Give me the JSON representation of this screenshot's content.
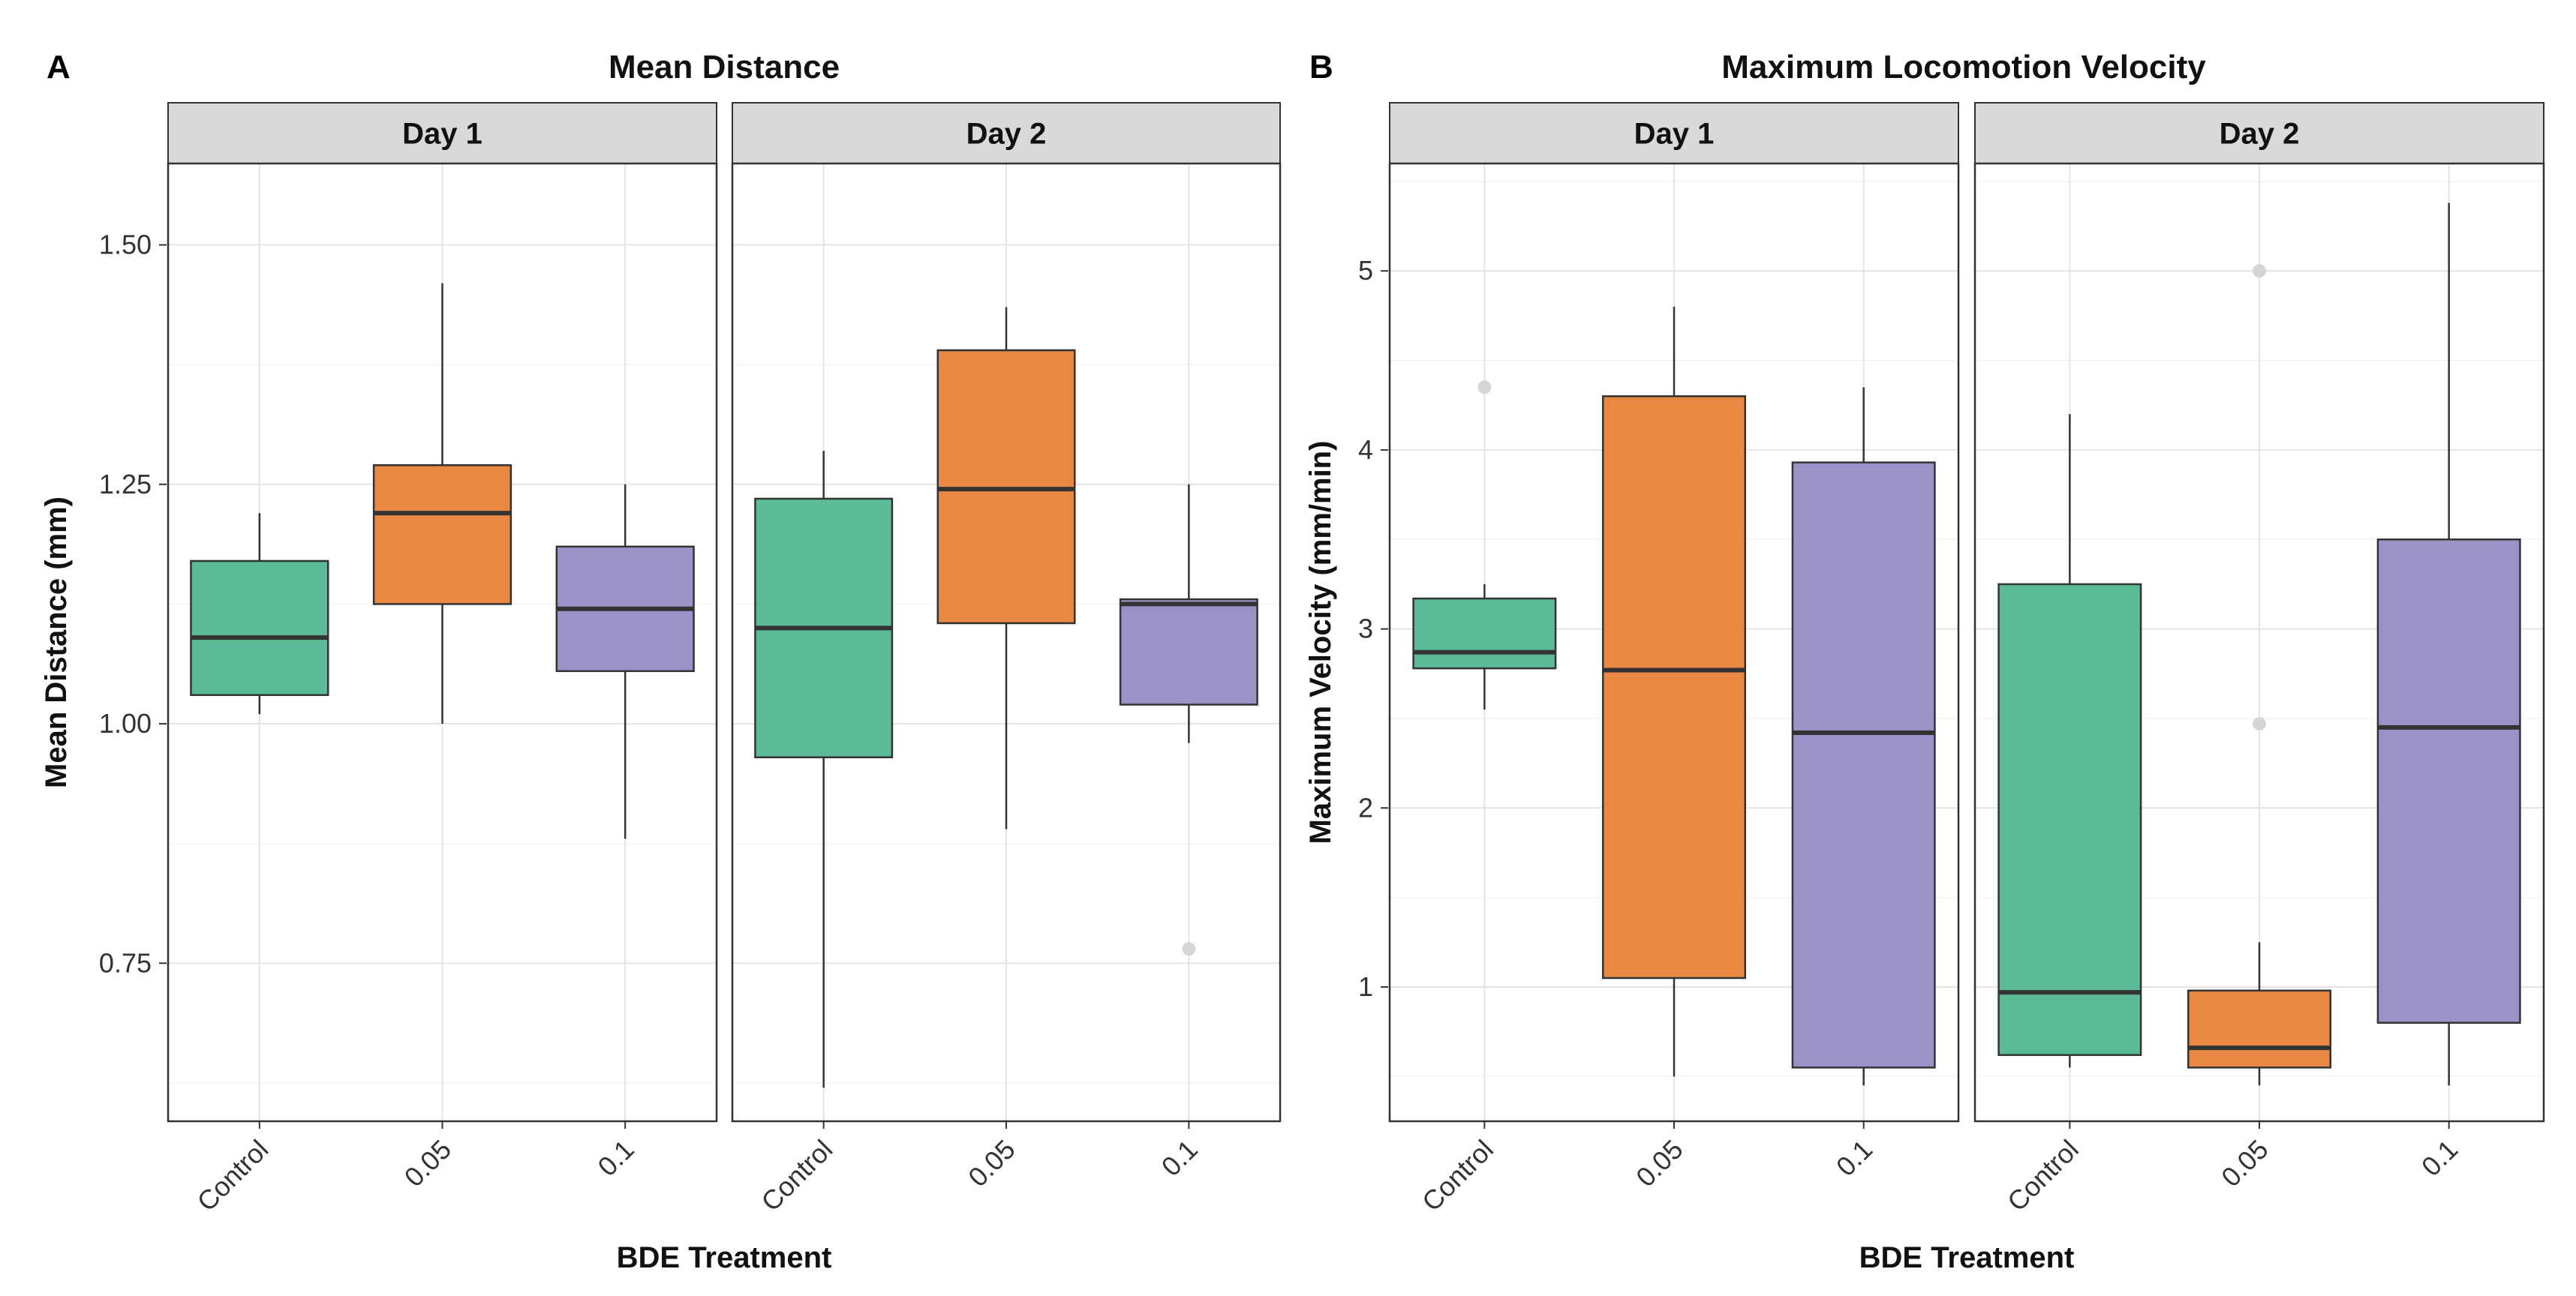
{
  "figure": {
    "xlabel": "BDE Treatment",
    "categories": [
      "Control",
      "0.05",
      "0.1"
    ],
    "colors": {
      "Control": "#5bbb95",
      "0.05": "#e98842",
      "0.1": "#9b92c8"
    }
  },
  "chart_data": [
    {
      "type": "box",
      "panel_letter": "A",
      "title": "Mean Distance",
      "xlabel": "BDE Treatment",
      "ylabel": "Mean Distance (mm)",
      "ylim": [
        0.585,
        1.585
      ],
      "yticks": [
        0.75,
        1.0,
        1.25,
        1.5
      ],
      "ytick_labels": [
        "0.75",
        "1.00",
        "1.25",
        "1.50"
      ],
      "grid": true,
      "facets": [
        {
          "strip": "Day 1",
          "boxes": [
            {
              "category": "Control",
              "whisker_low": 1.01,
              "q1": 1.03,
              "median": 1.09,
              "q3": 1.17,
              "whisker_high": 1.22,
              "outliers": []
            },
            {
              "category": "0.05",
              "whisker_low": 1.0,
              "q1": 1.125,
              "median": 1.22,
              "q3": 1.27,
              "whisker_high": 1.46,
              "outliers": []
            },
            {
              "category": "0.1",
              "whisker_low": 0.88,
              "q1": 1.055,
              "median": 1.12,
              "q3": 1.185,
              "whisker_high": 1.25,
              "outliers": []
            }
          ]
        },
        {
          "strip": "Day 2",
          "boxes": [
            {
              "category": "Control",
              "whisker_low": 0.62,
              "q1": 0.965,
              "median": 1.1,
              "q3": 1.235,
              "whisker_high": 1.285,
              "outliers": []
            },
            {
              "category": "0.05",
              "whisker_low": 0.89,
              "q1": 1.105,
              "median": 1.245,
              "q3": 1.39,
              "whisker_high": 1.435,
              "outliers": []
            },
            {
              "category": "0.1",
              "whisker_low": 0.98,
              "q1": 1.02,
              "median": 1.125,
              "q3": 1.13,
              "whisker_high": 1.25,
              "outliers": [
                0.765
              ]
            }
          ]
        }
      ]
    },
    {
      "type": "box",
      "panel_letter": "B",
      "title": "Maximum Locomotion Velocity",
      "xlabel": "BDE Treatment",
      "ylabel": "Maximum Velocity (mm/min)",
      "ylim": [
        0.25,
        5.6
      ],
      "yticks": [
        1,
        2,
        3,
        4,
        5
      ],
      "ytick_labels": [
        "1",
        "2",
        "3",
        "4",
        "5"
      ],
      "grid": true,
      "facets": [
        {
          "strip": "Day 1",
          "boxes": [
            {
              "category": "Control",
              "whisker_low": 2.55,
              "q1": 2.78,
              "median": 2.87,
              "q3": 3.17,
              "whisker_high": 3.25,
              "outliers": [
                4.35
              ]
            },
            {
              "category": "0.05",
              "whisker_low": 0.5,
              "q1": 1.05,
              "median": 2.77,
              "q3": 4.3,
              "whisker_high": 4.8,
              "outliers": []
            },
            {
              "category": "0.1",
              "whisker_low": 0.45,
              "q1": 0.55,
              "median": 2.42,
              "q3": 3.93,
              "whisker_high": 4.35,
              "outliers": []
            }
          ]
        },
        {
          "strip": "Day 2",
          "boxes": [
            {
              "category": "Control",
              "whisker_low": 0.55,
              "q1": 0.62,
              "median": 0.97,
              "q3": 3.25,
              "whisker_high": 4.2,
              "outliers": []
            },
            {
              "category": "0.05",
              "whisker_low": 0.45,
              "q1": 0.55,
              "median": 0.66,
              "q3": 0.98,
              "whisker_high": 1.25,
              "outliers": [
                2.47,
                5.0
              ]
            },
            {
              "category": "0.1",
              "whisker_low": 0.45,
              "q1": 0.8,
              "median": 2.45,
              "q3": 3.5,
              "whisker_high": 5.38,
              "outliers": []
            }
          ]
        }
      ]
    }
  ]
}
